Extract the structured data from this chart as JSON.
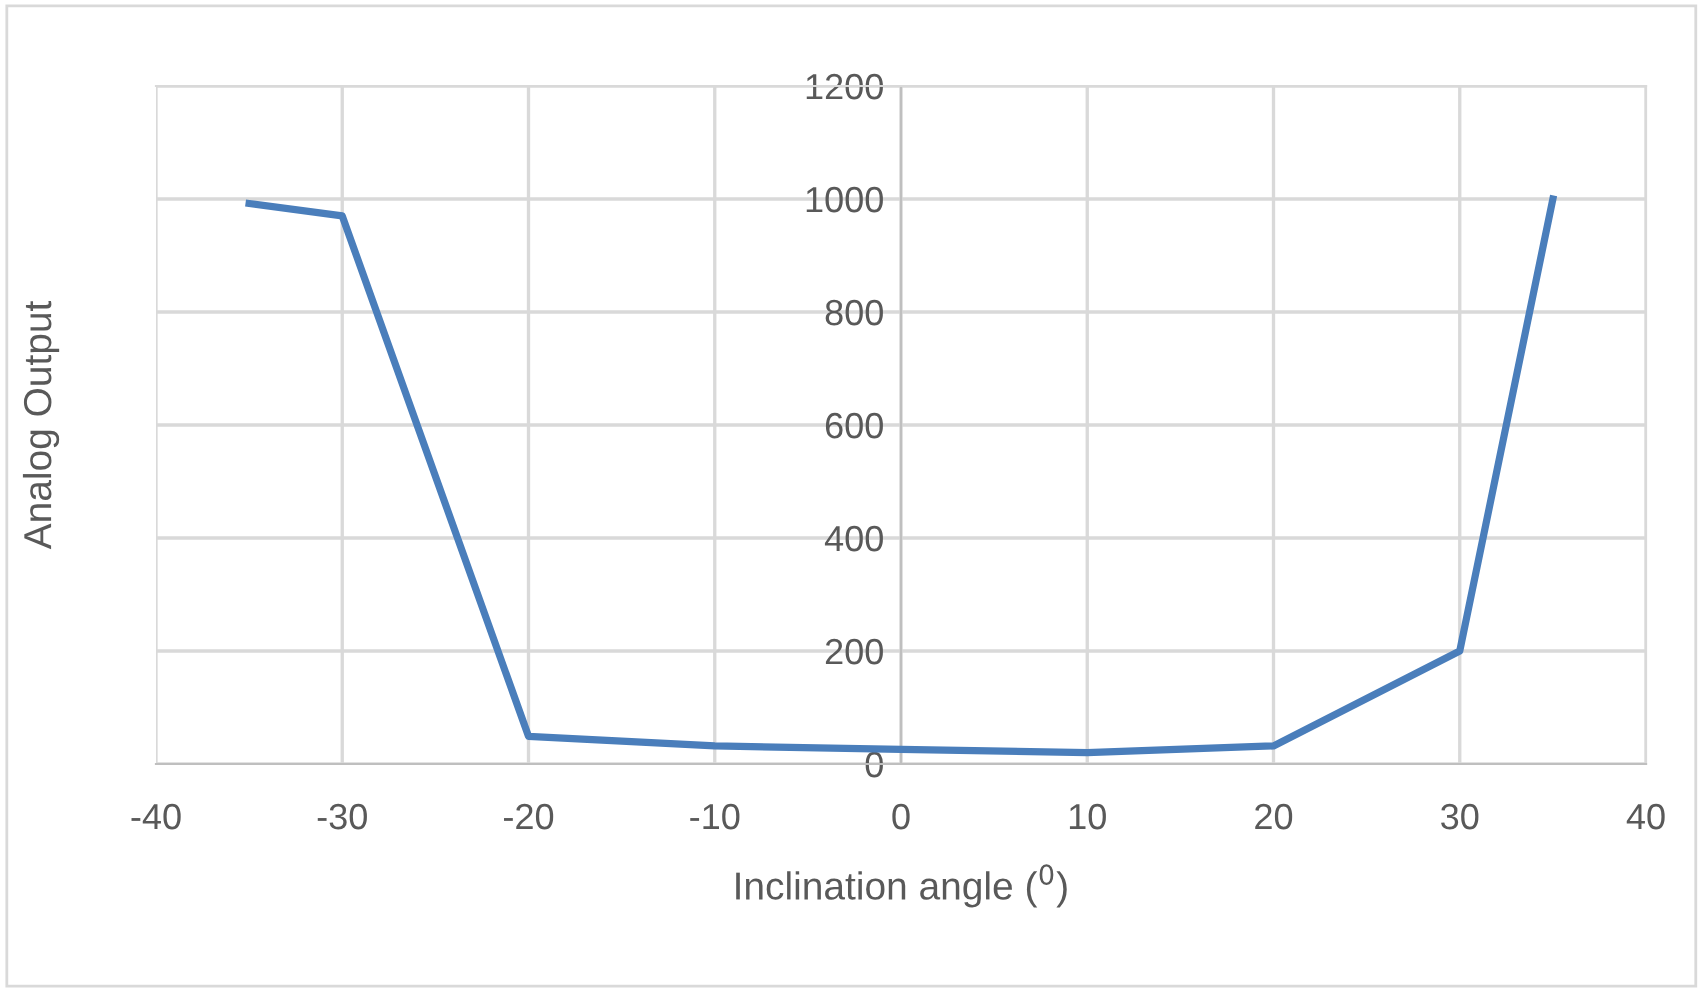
{
  "chart_data": {
    "type": "line",
    "xlabel": "Inclination angle ($^{0}$)",
    "ylabel": "Analog Output",
    "x": [
      -35,
      -30,
      -20,
      -10,
      0,
      10,
      20,
      30,
      35
    ],
    "series": [
      {
        "color": "#4a7ebb",
        "values": [
          992,
          970,
          49,
          32,
          26,
          20,
          32,
          200,
          1000
        ]
      }
    ],
    "xlim": [
      -40,
      40
    ],
    "xticks": [
      -40,
      -30,
      -20,
      -10,
      0,
      10,
      20,
      30,
      40
    ],
    "ylim": [
      0,
      1200
    ],
    "yticks": [
      0,
      200,
      400,
      600,
      800,
      1000,
      1200
    ],
    "grid": true,
    "marker": "none",
    "line_style": "solid"
  }
}
